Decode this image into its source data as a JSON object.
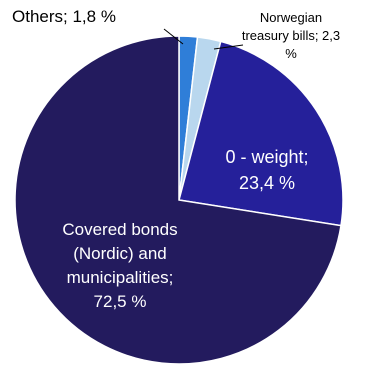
{
  "chart_data": {
    "type": "pie",
    "slices": [
      {
        "label_lines": [
          "Others; 1,8 %"
        ],
        "value": 1.8,
        "color": "#2f7ed8"
      },
      {
        "label_lines": [
          "Norwegian",
          "treasury bills; 2,3",
          "%"
        ],
        "value": 2.3,
        "color": "#b9d7ee"
      },
      {
        "label_lines": [
          "0 - weight;",
          "23,4 %"
        ],
        "value": 23.4,
        "color": "#25209a"
      },
      {
        "label_lines": [
          "Covered bonds",
          "(Nordic) and",
          "municipalities;",
          "72,5 %"
        ],
        "value": 72.5,
        "color": "#231b5e"
      }
    ]
  }
}
